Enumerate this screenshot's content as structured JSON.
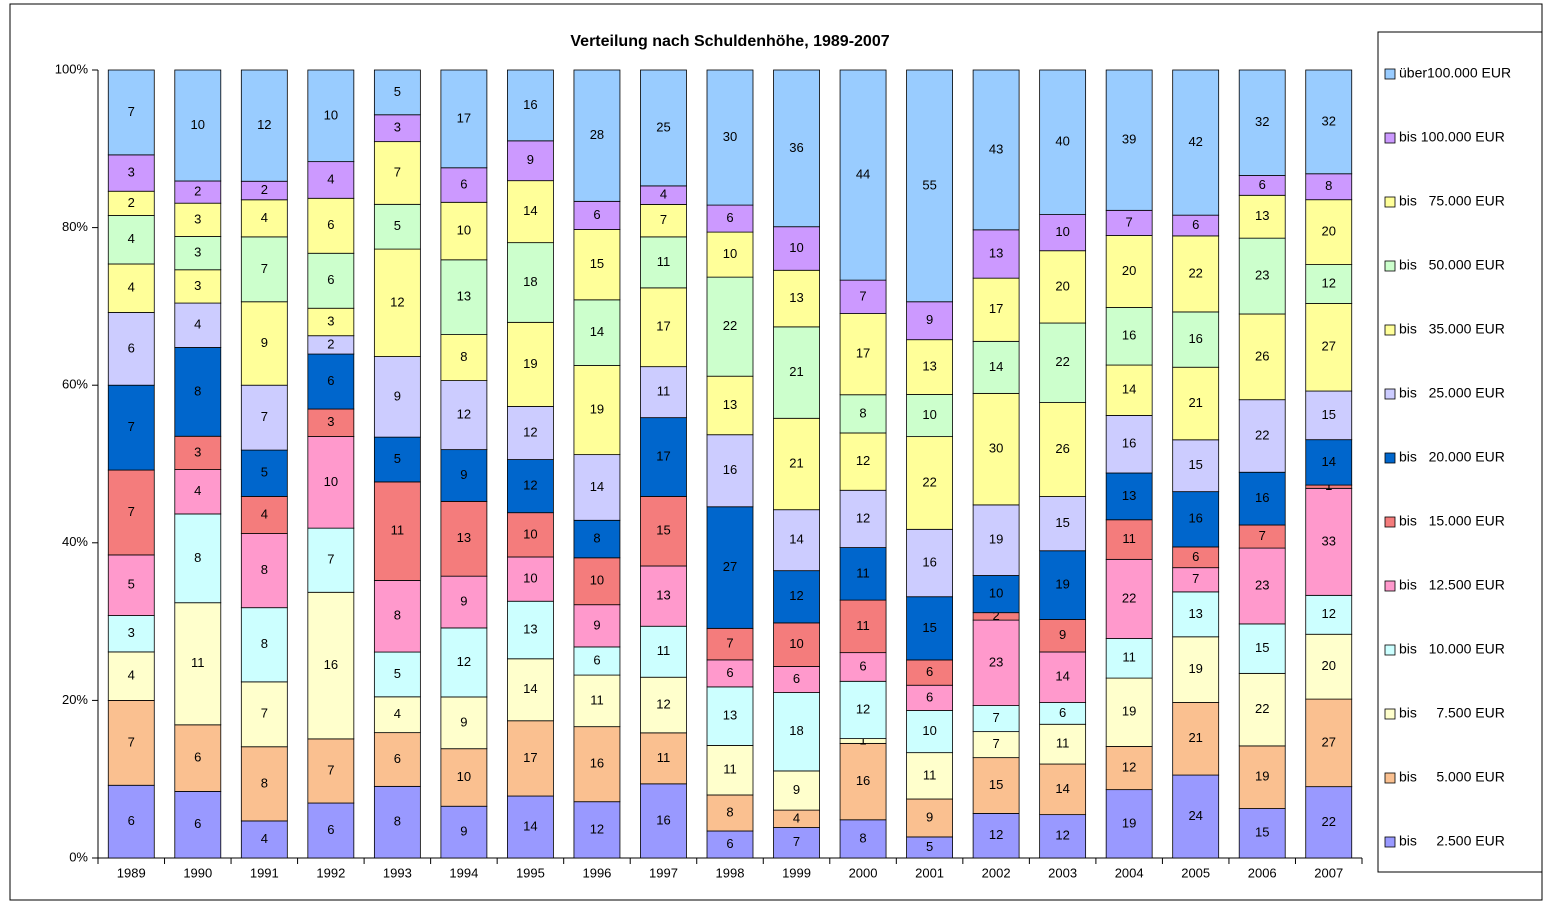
{
  "chart_data": {
    "type": "bar",
    "stacking": "percent",
    "title": "Verteilung nach Schuldenhöhe, 1989-2007",
    "categories": [
      "1989",
      "1990",
      "1991",
      "1992",
      "1993",
      "1994",
      "1995",
      "1996",
      "1997",
      "1998",
      "1999",
      "2000",
      "2001",
      "2002",
      "2003",
      "2004",
      "2005",
      "2006",
      "2007"
    ],
    "ylim": [
      0,
      100
    ],
    "yticks": [
      {
        "value": 0,
        "label": "0%"
      },
      {
        "value": 20,
        "label": "20%"
      },
      {
        "value": 40,
        "label": "40%"
      },
      {
        "value": 60,
        "label": "60%"
      },
      {
        "value": 80,
        "label": "80%"
      },
      {
        "value": 100,
        "label": "100%"
      }
    ],
    "legend": "right",
    "series": [
      {
        "name": "bis     2.500 EUR",
        "color": "#9999ff",
        "values": [
          6,
          6,
          4,
          6,
          8,
          9,
          14,
          12,
          16,
          6,
          7,
          8,
          5,
          12,
          12,
          19,
          24,
          15,
          22
        ]
      },
      {
        "name": "bis     5.000 EUR",
        "color": "#fac090",
        "values": [
          7,
          6,
          8,
          7,
          6,
          10,
          17,
          16,
          11,
          8,
          4,
          16,
          9,
          15,
          14,
          12,
          21,
          19,
          27
        ]
      },
      {
        "name": "bis     7.500 EUR",
        "color": "#ffffcc",
        "values": [
          4,
          11,
          7,
          16,
          4,
          9,
          14,
          11,
          12,
          11,
          9,
          1,
          11,
          7,
          11,
          19,
          19,
          22,
          20
        ]
      },
      {
        "name": "bis   10.000 EUR",
        "color": "#ccffff",
        "values": [
          3,
          8,
          8,
          7,
          5,
          12,
          13,
          6,
          11,
          13,
          18,
          12,
          10,
          7,
          6,
          11,
          13,
          15,
          12
        ]
      },
      {
        "name": "bis   12.500 EUR",
        "color": "#ff99cc",
        "values": [
          5,
          4,
          8,
          10,
          8,
          9,
          10,
          9,
          13,
          6,
          6,
          6,
          6,
          23,
          14,
          22,
          7,
          23,
          33
        ]
      },
      {
        "name": "bis   15.000 EUR",
        "color": "#f47c7c",
        "values": [
          7,
          3,
          4,
          3,
          11,
          13,
          10,
          10,
          15,
          7,
          10,
          11,
          6,
          2,
          9,
          11,
          6,
          7,
          1
        ]
      },
      {
        "name": "bis   20.000 EUR",
        "color": "#0066cc",
        "values": [
          7,
          8,
          5,
          6,
          5,
          9,
          12,
          8,
          17,
          27,
          12,
          11,
          15,
          10,
          19,
          13,
          16,
          16,
          14
        ]
      },
      {
        "name": "bis   25.000 EUR",
        "color": "#ccccff",
        "values": [
          6,
          4,
          7,
          2,
          9,
          12,
          12,
          14,
          11,
          16,
          14,
          12,
          16,
          19,
          15,
          16,
          15,
          22,
          15
        ]
      },
      {
        "name": "bis   35.000 EUR",
        "color": "#ffff99",
        "values": [
          4,
          3,
          9,
          3,
          12,
          8,
          19,
          19,
          17,
          13,
          21,
          12,
          22,
          30,
          26,
          14,
          21,
          26,
          27
        ]
      },
      {
        "name": "bis   50.000 EUR",
        "color": "#ccffcc",
        "values": [
          4,
          3,
          7,
          6,
          5,
          13,
          18,
          14,
          11,
          22,
          21,
          8,
          10,
          14,
          22,
          16,
          16,
          23,
          12
        ]
      },
      {
        "name": "bis   75.000 EUR",
        "color": "#ffff99",
        "values": [
          2,
          3,
          4,
          6,
          7,
          10,
          14,
          15,
          7,
          10,
          13,
          17,
          13,
          17,
          20,
          20,
          22,
          13,
          20
        ]
      },
      {
        "name": "bis 100.000 EUR",
        "color": "#cc99ff",
        "values": [
          3,
          2,
          2,
          4,
          3,
          6,
          9,
          6,
          4,
          6,
          10,
          7,
          9,
          13,
          10,
          7,
          6,
          6,
          8
        ]
      },
      {
        "name": "über100.000 EUR",
        "color": "#99ccff",
        "values": [
          7,
          10,
          12,
          10,
          5,
          17,
          16,
          28,
          25,
          30,
          36,
          44,
          55,
          43,
          40,
          39,
          42,
          32,
          32
        ]
      }
    ]
  }
}
